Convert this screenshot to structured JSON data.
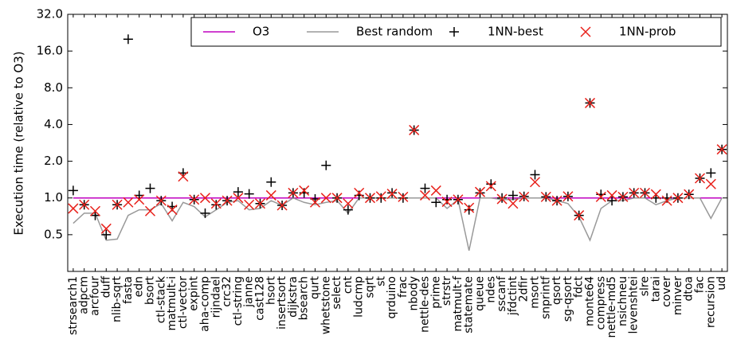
{
  "chart_data": {
    "type": "line",
    "y_label": "Execution time (relative to O3)",
    "log_scale_y": true,
    "legend_position": "upper right",
    "ylim": [
      0.25,
      32
    ],
    "yticks": [
      {
        "value": 0.5,
        "label": "0.5"
      },
      {
        "value": 1,
        "label": "1.0"
      },
      {
        "value": 2,
        "label": "2.0"
      },
      {
        "value": 4,
        "label": "4.0"
      },
      {
        "value": 8,
        "label": "8.0"
      },
      {
        "value": 16,
        "label": "16.0"
      },
      {
        "value": 32,
        "label": "32.0"
      }
    ],
    "categories": [
      "strsearch1",
      "adpcm",
      "arcfour",
      "duff",
      "nlib-sqrt",
      "fasta",
      "edn",
      "bsort",
      "ctl-stack",
      "matmult-i",
      "ctl-vector",
      "expint",
      "aha-comp",
      "rijndael",
      "crc32",
      "ctl-string",
      "janne",
      "cast128",
      "hsort",
      "insertsort",
      "dijkstra",
      "bsearch",
      "qurt",
      "whetstone",
      "select",
      "cnt",
      "ludcmp",
      "sqrt",
      "st",
      "qrduino",
      "frac",
      "nbody",
      "nettle-des",
      "prime",
      "strstr",
      "matmult-f",
      "statemate",
      "queue",
      "ndes",
      "sscanf",
      "jfdctint",
      "2dfir",
      "msort",
      "snprintf",
      "qsort",
      "sg-qsort",
      "fdct",
      "monte64",
      "compress",
      "nettle-md5",
      "nsichneu",
      "levenshtei",
      "slre",
      "tarai",
      "cover",
      "minver",
      "dtoa",
      "fac",
      "recursion",
      "ud"
    ],
    "series": [
      {
        "name": "O3",
        "color": "#c000c0",
        "style": "line",
        "values": [
          1,
          1,
          1,
          1,
          1,
          1,
          1,
          1,
          1,
          1,
          1,
          1,
          1,
          1,
          1,
          1,
          1,
          1,
          1,
          1,
          1,
          1,
          1,
          1,
          1,
          1,
          1,
          1,
          1,
          1,
          1,
          1,
          1,
          1,
          1,
          1,
          1,
          1,
          1,
          1,
          1,
          1,
          1,
          1,
          1,
          1,
          1,
          1,
          1,
          1,
          1,
          1,
          1,
          1,
          1,
          1,
          1,
          1,
          1,
          1
        ]
      },
      {
        "name": "Best random",
        "color": "#999999",
        "style": "line",
        "values": [
          0.62,
          0.75,
          0.75,
          0.45,
          0.46,
          0.72,
          0.8,
          0.8,
          0.9,
          0.65,
          0.92,
          0.85,
          0.7,
          0.8,
          0.92,
          0.95,
          0.8,
          0.82,
          0.95,
          0.87,
          1.0,
          0.92,
          0.88,
          0.92,
          0.95,
          0.75,
          1.0,
          1.0,
          1.0,
          1.0,
          1.0,
          1.0,
          1.0,
          1.0,
          0.82,
          0.97,
          0.37,
          1.0,
          1.0,
          0.97,
          0.97,
          1.0,
          1.0,
          1.0,
          0.95,
          0.9,
          0.7,
          0.45,
          0.82,
          0.95,
          0.95,
          1.0,
          1.0,
          0.88,
          0.95,
          1.0,
          1.0,
          1.0,
          0.68,
          1.0
        ]
      },
      {
        "name": "1NN-best",
        "color": "#000000",
        "style": "plus",
        "values": [
          1.15,
          0.88,
          0.72,
          0.5,
          0.88,
          20,
          1.05,
          1.2,
          0.95,
          0.85,
          1.6,
          0.97,
          0.75,
          0.88,
          0.95,
          1.12,
          1.08,
          0.9,
          1.35,
          0.87,
          1.1,
          1.1,
          0.98,
          1.85,
          1.0,
          0.8,
          1.05,
          1.0,
          1.0,
          1.1,
          1.0,
          3.6,
          1.2,
          0.92,
          0.97,
          0.97,
          0.8,
          1.1,
          1.3,
          1.0,
          1.05,
          1.03,
          1.55,
          1.02,
          0.95,
          1.03,
          0.72,
          6.0,
          1.07,
          0.95,
          1.02,
          1.1,
          1.1,
          1.0,
          1.0,
          1.0,
          1.07,
          1.45,
          1.6,
          2.5
        ]
      },
      {
        "name": "1NN-prob",
        "color": "#e8201a",
        "style": "cross",
        "values": [
          0.82,
          0.88,
          0.78,
          0.56,
          0.88,
          0.92,
          0.97,
          0.78,
          0.95,
          0.8,
          1.5,
          0.97,
          1.0,
          0.9,
          0.95,
          1.0,
          0.88,
          0.9,
          1.05,
          0.87,
          1.1,
          1.15,
          0.92,
          1.0,
          1.0,
          0.9,
          1.1,
          1.0,
          1.03,
          1.08,
          1.02,
          3.6,
          1.05,
          1.15,
          0.93,
          0.97,
          0.83,
          1.12,
          1.25,
          0.98,
          0.9,
          1.02,
          1.35,
          1.02,
          0.95,
          1.03,
          0.72,
          6.0,
          1.02,
          1.05,
          1.02,
          1.1,
          1.1,
          1.07,
          0.95,
          1.0,
          1.07,
          1.45,
          1.3,
          2.5
        ]
      }
    ]
  }
}
